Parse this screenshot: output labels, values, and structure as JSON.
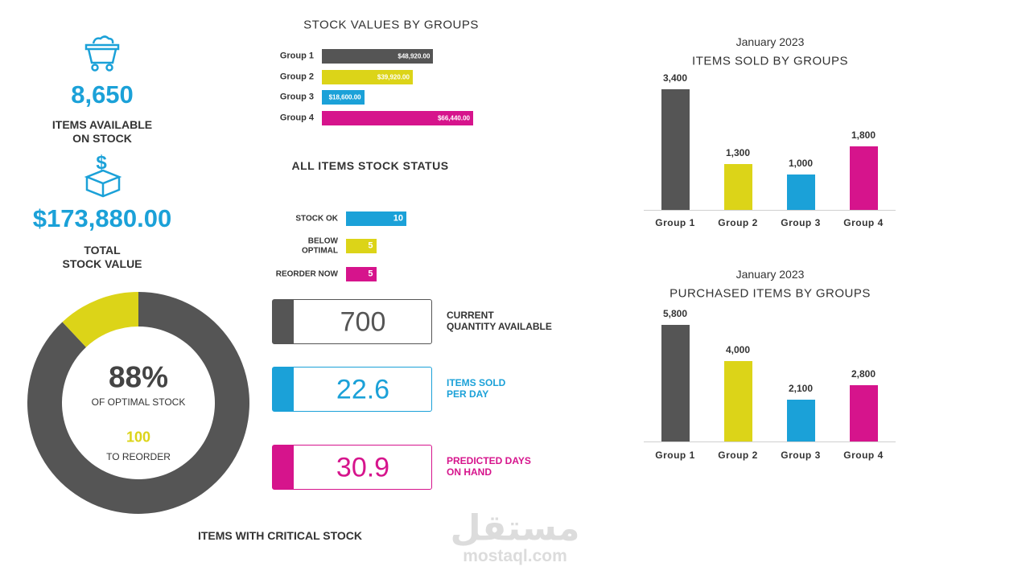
{
  "kpis": [
    {
      "value": "8,650",
      "label": [
        "ITEMS AVAILABLE",
        "ON STOCK"
      ],
      "color": "#1ba1d8"
    },
    {
      "value": "$173,880.00",
      "label": [
        "TOTAL",
        "STOCK VALUE"
      ],
      "color": "#1ba1d8"
    }
  ],
  "cards": [
    {
      "value": 700,
      "label": [
        "CURRENT",
        "QUANTITY AVAILABLE"
      ],
      "color": "#555555",
      "label_color": "#333333"
    },
    {
      "value": 22.6,
      "label": [
        "ITEMS SOLD",
        "PER DAY"
      ],
      "color": "#1ba1d8",
      "label_color": "#1ba1d8"
    },
    {
      "value": 30.9,
      "label": [
        "PREDICTED DAYS",
        "ON HAND"
      ],
      "color": "#d6148c",
      "label_color": "#d6148c"
    }
  ],
  "chart_data": [
    {
      "type": "bar",
      "orientation": "horizontal",
      "title": "STOCK VALUES BY GROUPS",
      "categories": [
        "Group 1",
        "Group 2",
        "Group 3",
        "Group 4"
      ],
      "values": [
        48920,
        39920,
        18600,
        66440
      ],
      "value_labels": [
        "$48,920.00",
        "$39,920.00",
        "$18,600.00",
        "$66,440.00"
      ],
      "colors": [
        "#555555",
        "#dcd418",
        "#1ba1d8",
        "#d6148c"
      ]
    },
    {
      "type": "bar",
      "orientation": "horizontal",
      "title": "ALL ITEMS STOCK STATUS",
      "categories": [
        "STOCK OK",
        "BELOW OPTIMAL",
        "REORDER NOW"
      ],
      "values": [
        10,
        5,
        5
      ],
      "colors": [
        "#1ba1d8",
        "#dcd418",
        "#d6148c"
      ]
    },
    {
      "type": "bar",
      "orientation": "vertical",
      "subtitle": "January 2023",
      "title": "ITEMS SOLD BY GROUPS",
      "categories": [
        "Group 1",
        "Group 2",
        "Group 3",
        "Group 4"
      ],
      "values": [
        3400,
        1300,
        1000,
        1800
      ],
      "value_labels": [
        "3,400",
        "1,300",
        "1,000",
        "1,800"
      ],
      "colors": [
        "#555555",
        "#dcd418",
        "#1ba1d8",
        "#d6148c"
      ]
    },
    {
      "type": "bar",
      "orientation": "vertical",
      "subtitle": "January 2023",
      "title": "PURCHASED ITEMS BY GROUPS",
      "categories": [
        "Group 1",
        "Group 2",
        "Group 3",
        "Group 4"
      ],
      "values": [
        5800,
        4000,
        2100,
        2800
      ],
      "value_labels": [
        "5,800",
        "4,000",
        "2,100",
        "2,800"
      ],
      "colors": [
        "#555555",
        "#dcd418",
        "#1ba1d8",
        "#d6148c"
      ]
    },
    {
      "type": "pie",
      "donut": true,
      "title": "ITEMS WITH CRITICAL STOCK",
      "values": [
        88,
        12
      ],
      "value_labels": [
        "88%",
        null
      ],
      "colors": [
        "#555555",
        "#dcd418"
      ],
      "center_label": "OF OPTIMAL STOCK",
      "reorder": 100,
      "reorder_label": "TO REORDER"
    }
  ],
  "watermark": {
    "arabic": "مستقل",
    "latin": "mostaql.com"
  }
}
